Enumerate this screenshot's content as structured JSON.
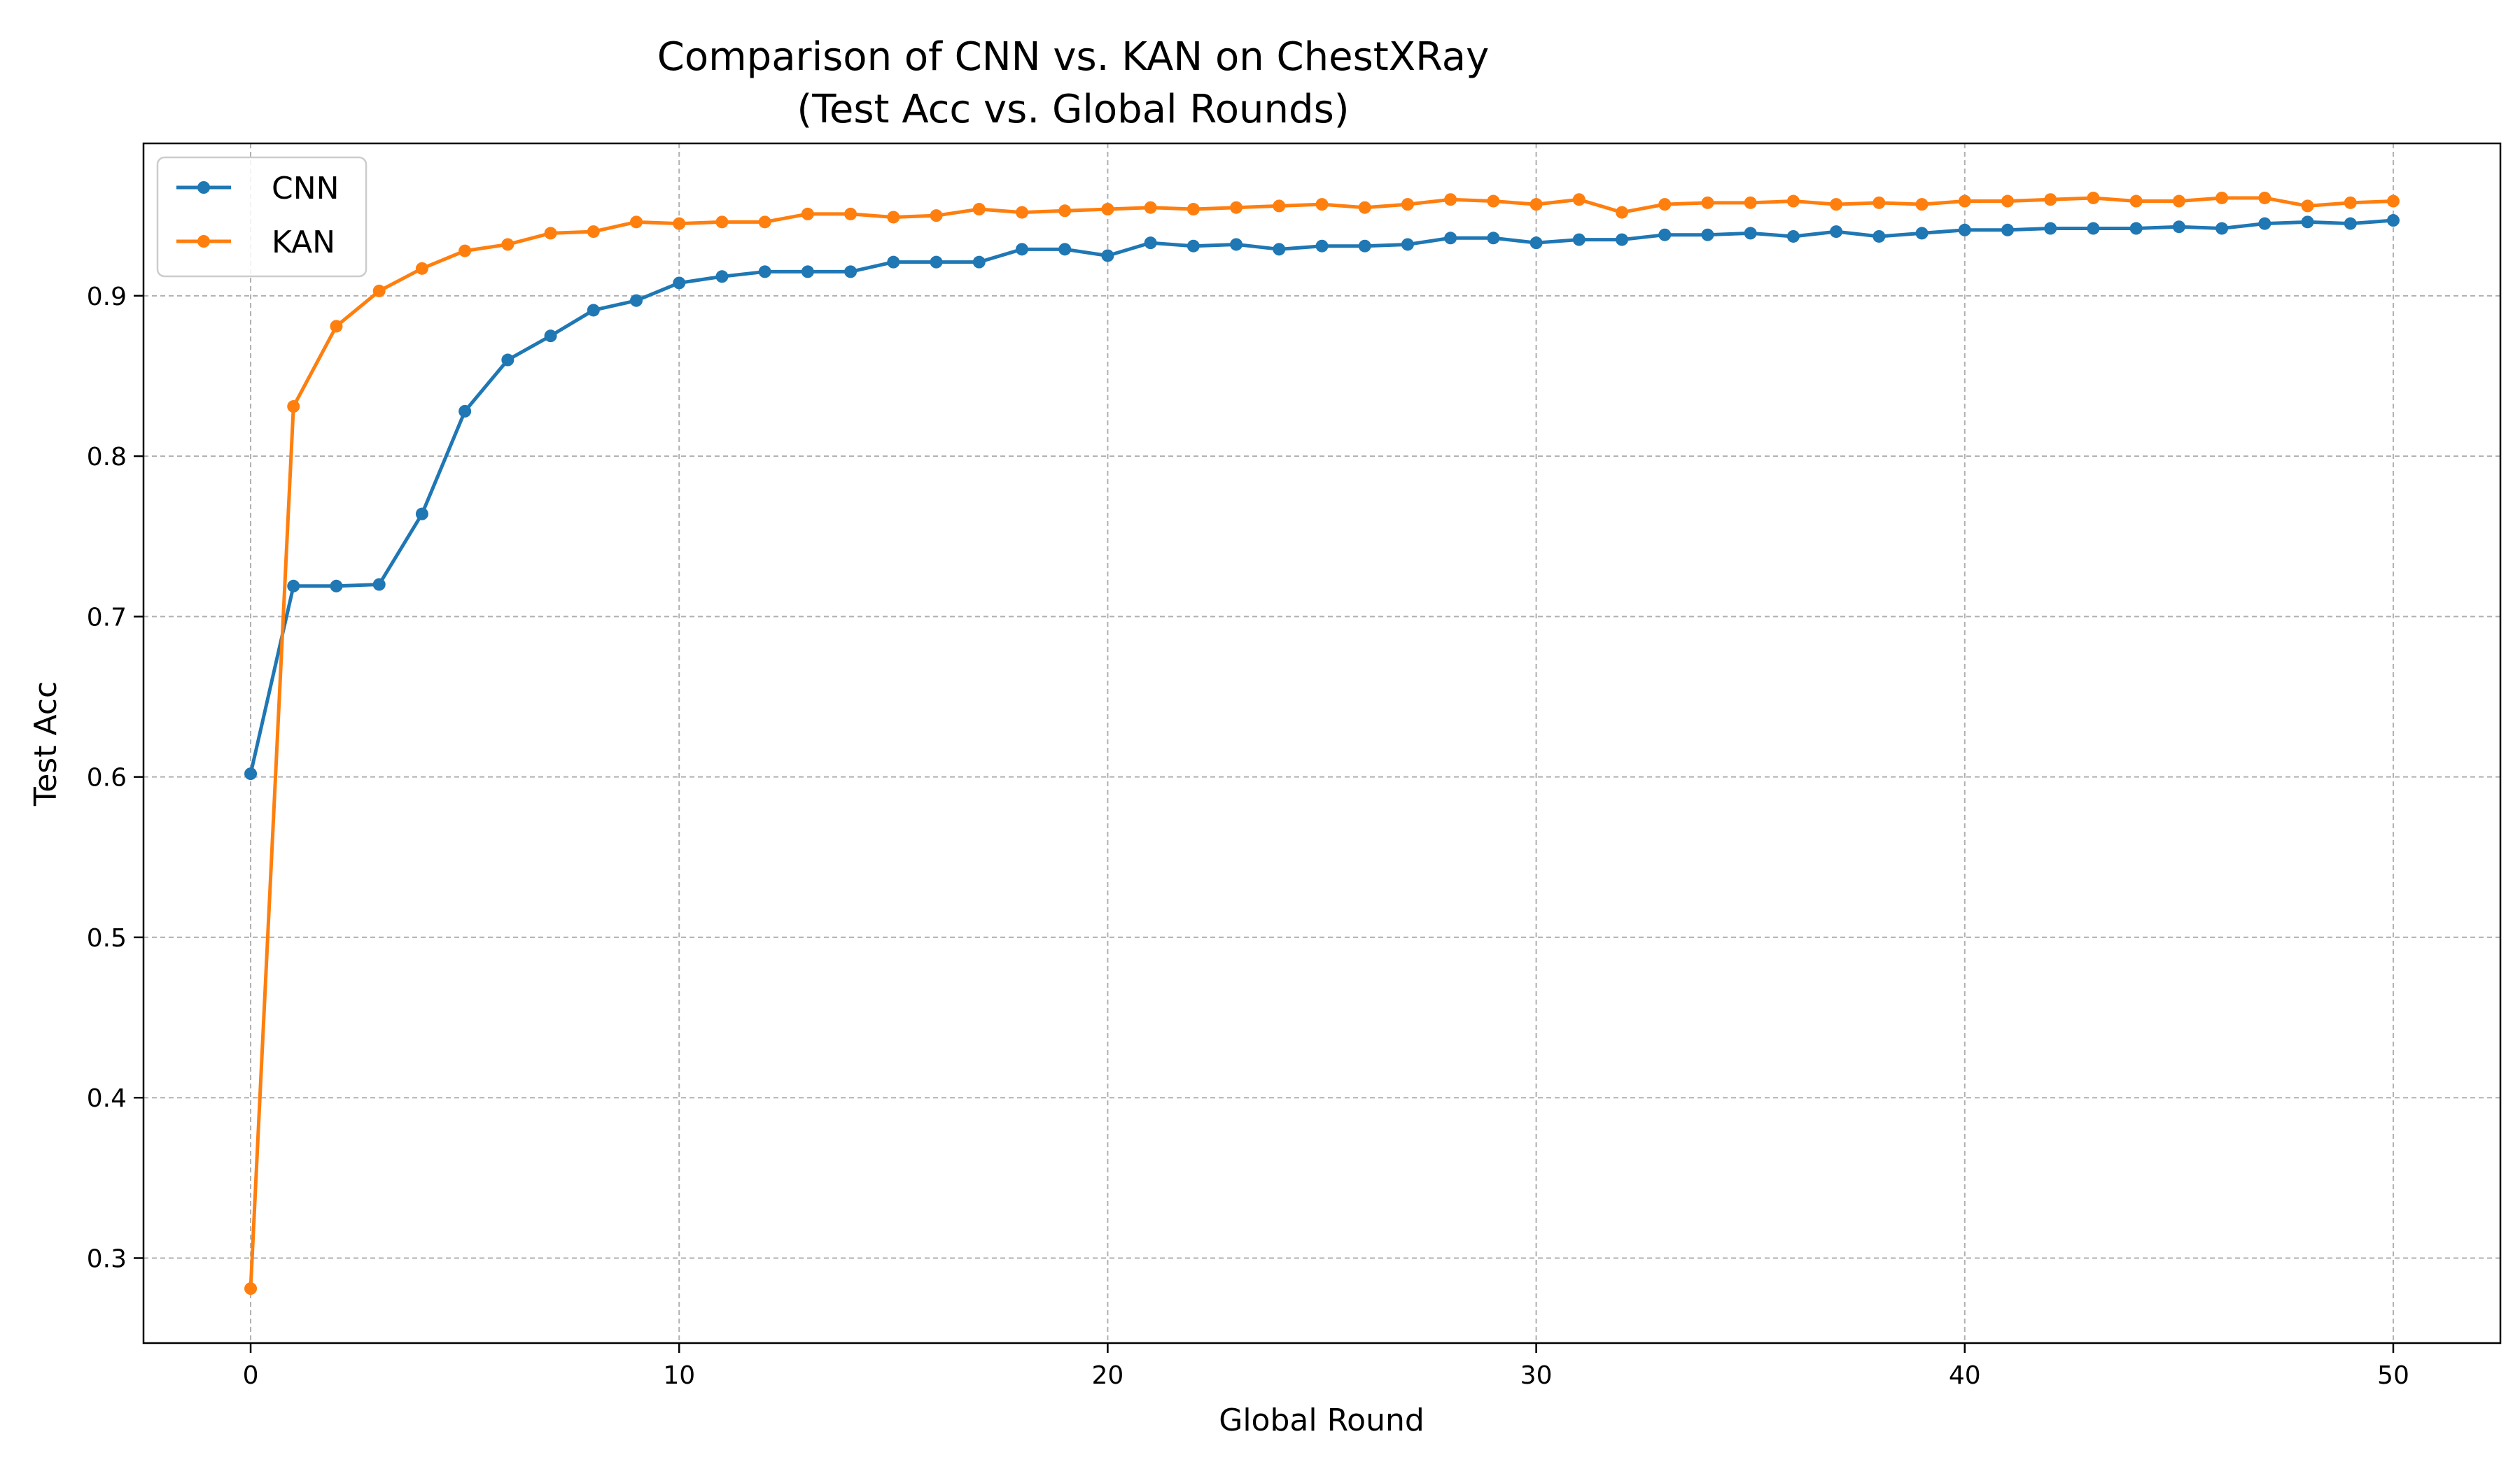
{
  "chart_data": {
    "type": "line",
    "title_line1": "Comparison of CNN vs. KAN on ChestXRay",
    "title_line2": "(Test Acc vs. Global Rounds)",
    "xlabel": "Global Round",
    "ylabel": "Test Acc",
    "xlim": [
      -2.5,
      52.5
    ],
    "ylim": [
      0.247,
      0.995
    ],
    "xticks": [
      0,
      10,
      20,
      30,
      40,
      50
    ],
    "yticks": [
      0.3,
      0.4,
      0.5,
      0.6,
      0.7,
      0.8,
      0.9
    ],
    "grid": true,
    "legend_position": "top-left",
    "x": [
      0,
      1,
      2,
      3,
      4,
      5,
      6,
      7,
      8,
      9,
      10,
      11,
      12,
      13,
      14,
      15,
      16,
      17,
      18,
      19,
      20,
      21,
      22,
      23,
      24,
      25,
      26,
      27,
      28,
      29,
      30,
      31,
      32,
      33,
      34,
      35,
      36,
      37,
      38,
      39,
      40,
      41,
      42,
      43,
      44,
      45,
      46,
      47,
      48,
      49,
      50
    ],
    "series": [
      {
        "name": "CNN",
        "color": "#1f77b4",
        "values": [
          0.602,
          0.719,
          0.719,
          0.72,
          0.764,
          0.828,
          0.86,
          0.875,
          0.891,
          0.897,
          0.908,
          0.912,
          0.915,
          0.915,
          0.915,
          0.921,
          0.921,
          0.921,
          0.929,
          0.929,
          0.925,
          0.933,
          0.931,
          0.932,
          0.929,
          0.931,
          0.931,
          0.932,
          0.936,
          0.936,
          0.933,
          0.935,
          0.935,
          0.938,
          0.938,
          0.939,
          0.937,
          0.94,
          0.937,
          0.939,
          0.941,
          0.941,
          0.942,
          0.942,
          0.942,
          0.943,
          0.942,
          0.945,
          0.946,
          0.945,
          0.947
        ]
      },
      {
        "name": "KAN",
        "color": "#ff7f0e",
        "values": [
          0.281,
          0.831,
          0.881,
          0.903,
          0.917,
          0.928,
          0.932,
          0.939,
          0.94,
          0.946,
          0.945,
          0.946,
          0.946,
          0.951,
          0.951,
          0.949,
          0.95,
          0.954,
          0.952,
          0.953,
          0.954,
          0.955,
          0.954,
          0.955,
          0.956,
          0.957,
          0.955,
          0.957,
          0.96,
          0.959,
          0.957,
          0.96,
          0.952,
          0.957,
          0.958,
          0.958,
          0.959,
          0.957,
          0.958,
          0.957,
          0.959,
          0.959,
          0.96,
          0.961,
          0.959,
          0.959,
          0.961,
          0.961,
          0.956,
          0.958,
          0.959
        ]
      }
    ]
  }
}
